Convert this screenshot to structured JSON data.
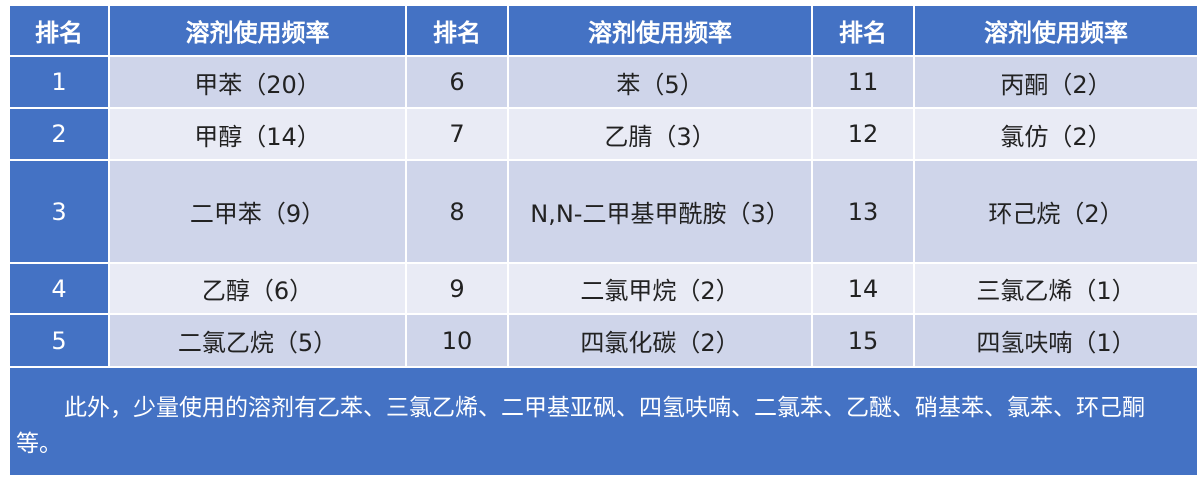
{
  "header": [
    "排名",
    "溶剂使用频率",
    "排名",
    "溶剂使用频率",
    "排名",
    "溶剂使用频率"
  ],
  "rows": [
    {
      "r1": "1",
      "s1": "甲苯（20）",
      "r2": "6",
      "s2": "苯（5）",
      "r3": "11",
      "s3": "丙酮（2）"
    },
    {
      "r1": "2",
      "s1": "甲醇（14）",
      "r2": "7",
      "s2": "乙腈（3）",
      "r3": "12",
      "s3": "氯仿（2）"
    },
    {
      "r1": "3",
      "s1": "二甲苯（9）",
      "r2": "8",
      "s2": "N,N-二甲基甲酰胺（3）",
      "r3": "13",
      "s3": "环己烷（2）"
    },
    {
      "r1": "4",
      "s1": "乙醇（6）",
      "r2": "9",
      "s2": "二氯甲烷（2）",
      "r3": "14",
      "s3": "三氯乙烯（1）"
    },
    {
      "r1": "5",
      "s1": "二氯乙烷（5）",
      "r2": "10",
      "s2": "四氯化碳（2）",
      "r3": "15",
      "s3": "四氢呋喃（1）"
    }
  ],
  "footer": "此外，少量使用的溶剂有乙苯、三氯乙烯、二甲基亚砜、四氢呋喃、二氯苯、乙醚、硝基苯、氯苯、环己酮等。",
  "colors": {
    "header": "#4472C4",
    "row_odd": "#CFD5EA",
    "row_even": "#E9EBF5"
  }
}
